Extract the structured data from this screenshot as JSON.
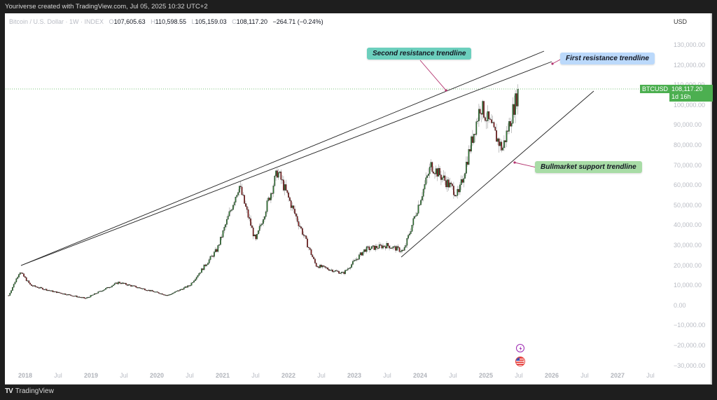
{
  "caption": "Youriverse created with TradingView.com, Jul 05, 2025 10:32 UTC+2",
  "legend": {
    "symbol": "Bitcoin / U.S. Dollar · 1W · INDEX",
    "o_label": "O",
    "open": "107,605.63",
    "h_label": "H",
    "high": "110,598.55",
    "l_label": "L",
    "low": "105,159.03",
    "c_label": "C",
    "close": "108,117.20",
    "change": "−264.71 (−0.24%)"
  },
  "price_axis": {
    "currency": "USD",
    "ticks": [
      "130,000.00",
      "120,000.00",
      "110,000.00",
      "100,000.00",
      "90,000.00",
      "80,000.00",
      "70,000.00",
      "60,000.00",
      "50,000.00",
      "40,000.00",
      "30,000.00",
      "20,000.00",
      "10,000.00",
      "0.00",
      "−10,000.00",
      "−20,000.00",
      "−30,000.00"
    ]
  },
  "time_axis": {
    "ticks": [
      "2018",
      "Jul",
      "2019",
      "Jul",
      "2020",
      "Jul",
      "2021",
      "Jul",
      "2022",
      "Jul",
      "2023",
      "Jul",
      "2024",
      "Jul",
      "2025",
      "Jul",
      "2026",
      "Jul",
      "2027",
      "Jul"
    ]
  },
  "last_price": {
    "symbol_tag": "BTCUSD",
    "price": "108,117.20",
    "countdown": "1d 16h",
    "color": "#4caf50"
  },
  "annotations": {
    "second_resistance": {
      "label": "Second resistance trendline",
      "color": "#6ccfbd"
    },
    "first_resistance": {
      "label": "First resistance trendline",
      "color": "#bbd9fb"
    },
    "bull_support": {
      "label": "Bullmarket support trendline",
      "color": "#a8dca6"
    }
  },
  "footer": {
    "logo": "TV",
    "brand": "TradingView"
  },
  "colors": {
    "up": "#2e7d32",
    "down": "#8b1a1a",
    "wick": "#9e9e9e",
    "line": "#131722",
    "pointer": "#b3336e"
  },
  "chart_data": {
    "type": "candlestick",
    "title": "Bitcoin / U.S. Dollar · 1W · INDEX",
    "xlabel": "",
    "ylabel": "USD",
    "ylim": [
      -30000,
      135000
    ],
    "x_range": [
      "2017-10",
      "2027-10"
    ],
    "grid": false,
    "approx_weekly_close_path": {
      "x": [
        "2017-10",
        "2017-12",
        "2018-02",
        "2018-06",
        "2018-12",
        "2019-06",
        "2019-12",
        "2020-03",
        "2020-07",
        "2020-12",
        "2021-04",
        "2021-07",
        "2021-11",
        "2022-06",
        "2022-11",
        "2023-03",
        "2023-07",
        "2023-10",
        "2024-03",
        "2024-08",
        "2024-12",
        "2025-04",
        "2025-07"
      ],
      "y": [
        5000,
        17000,
        10000,
        7000,
        3500,
        11500,
        7200,
        5000,
        10000,
        28000,
        60000,
        32000,
        67000,
        20000,
        16000,
        28000,
        30000,
        27000,
        70000,
        55000,
        100000,
        78000,
        108117
      ]
    },
    "trendlines": [
      {
        "name": "Second resistance trendline",
        "from": {
          "x": "2017-12",
          "y": 19800
        },
        "to": {
          "x": "2025-11",
          "y": 126000
        }
      },
      {
        "name": "First resistance trendline",
        "from": {
          "x": "2017-12",
          "y": 19800
        },
        "to": {
          "x": "2025-11",
          "y": 121000
        }
      },
      {
        "name": "Bullmarket support trendline",
        "from": {
          "x": "2023-09",
          "y": 24500
        },
        "to": {
          "x": "2026-03",
          "y": 107000
        }
      }
    ],
    "last": {
      "open": 107605.63,
      "high": 110598.55,
      "low": 105159.03,
      "close": 108117.2,
      "change": -264.71,
      "change_pct": -0.24
    }
  }
}
